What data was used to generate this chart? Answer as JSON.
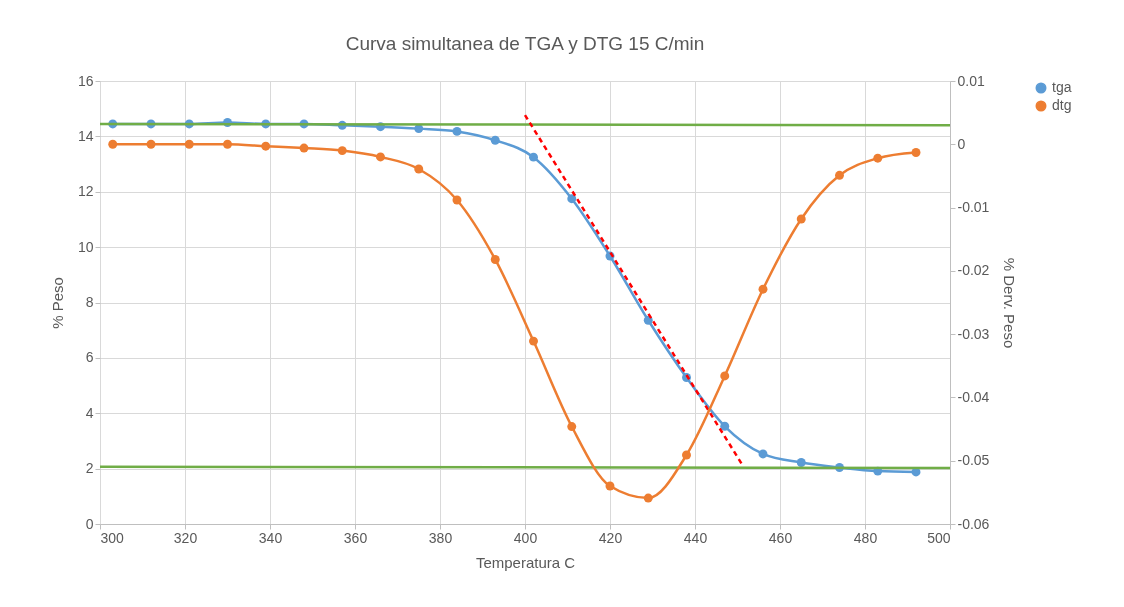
{
  "chart_data": {
    "type": "line",
    "title": "Curva simultanea de TGA y DTG 15 C/min",
    "xlabel": "Temperatura C",
    "ylabel": "% Peso",
    "y2label": "% Derv. Peso",
    "x": [
      303,
      312,
      321,
      330,
      339,
      348,
      357,
      366,
      375,
      384,
      393,
      402,
      411,
      420,
      429,
      438,
      447,
      456,
      465,
      474,
      483,
      492
    ],
    "xlim": [
      300,
      500
    ],
    "xticks": [
      300,
      320,
      340,
      360,
      380,
      400,
      420,
      440,
      460,
      480,
      500
    ],
    "ylim": [
      0,
      16
    ],
    "yticks": [
      0,
      2,
      4,
      6,
      8,
      10,
      12,
      14,
      16
    ],
    "y2lim": [
      -0.06,
      0.01
    ],
    "y2ticks": [
      -0.06,
      -0.05,
      -0.04,
      -0.03,
      -0.02,
      -0.01,
      0,
      0.01
    ],
    "grid": true,
    "legend": "right",
    "marker": "circle",
    "line_style": "solid",
    "series": [
      {
        "name": "tga",
        "color": "#5b9bd5",
        "values": [
          14.45,
          14.45,
          14.45,
          14.5,
          14.45,
          14.45,
          14.4,
          14.35,
          14.28,
          14.18,
          13.86,
          13.25,
          11.75,
          9.68,
          7.36,
          5.29,
          3.53,
          2.53,
          2.22,
          2.04,
          1.91,
          1.88
        ]
      },
      {
        "name": "dtg",
        "color": "#ed7d31",
        "axis": "y2",
        "values": [
          0,
          0,
          0,
          0,
          -0.0003,
          -0.0006,
          -0.001,
          -0.002,
          -0.0039,
          -0.0088,
          -0.0182,
          -0.0311,
          -0.0446,
          -0.054,
          -0.0559,
          -0.0491,
          -0.0366,
          -0.0229,
          -0.0118,
          -0.0049,
          -0.0022,
          -0.0013
        ]
      },
      {
        "type": "line",
        "color": "#70ad47",
        "marker": "none",
        "x": [
          300,
          500
        ],
        "values": [
          14.45,
          14.4
        ]
      },
      {
        "type": "line",
        "color": "#70ad47",
        "marker": "none",
        "x": [
          300,
          500
        ],
        "values": [
          2.07,
          2.02
        ]
      },
      {
        "type": "line",
        "color": "#ff0000",
        "marker": "none",
        "line_style": "dashed",
        "x": [
          400,
          451
        ],
        "values": [
          14.77,
          2.17
        ]
      }
    ]
  }
}
